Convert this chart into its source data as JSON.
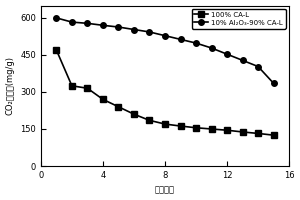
{
  "series1_label": "100% CA-L",
  "series1_marker": "s",
  "series1_x": [
    1,
    2,
    3,
    4,
    5,
    6,
    7,
    8,
    9,
    10,
    11,
    12,
    13,
    14,
    15
  ],
  "series1_y": [
    470,
    325,
    315,
    270,
    240,
    210,
    185,
    170,
    162,
    155,
    150,
    145,
    138,
    132,
    125
  ],
  "series2_label": "10% Al₂O₃-90% CA-L",
  "series2_marker": "o",
  "series2_x": [
    1,
    2,
    3,
    4,
    5,
    6,
    7,
    8,
    9,
    10,
    11,
    12,
    13,
    14,
    15
  ],
  "series2_y": [
    600,
    583,
    578,
    570,
    563,
    553,
    543,
    528,
    513,
    498,
    478,
    453,
    428,
    403,
    335
  ],
  "xlabel": "循环次数",
  "ylabel": "CO₂吸附量(mg/g)",
  "xlim": [
    0,
    16
  ],
  "ylim": [
    0,
    650
  ],
  "xticks": [
    0,
    4,
    8,
    12,
    16
  ],
  "yticks": [
    0,
    150,
    300,
    450,
    600
  ],
  "line_color": "black",
  "bg_color": "#ffffff",
  "legend_loc": "upper right"
}
